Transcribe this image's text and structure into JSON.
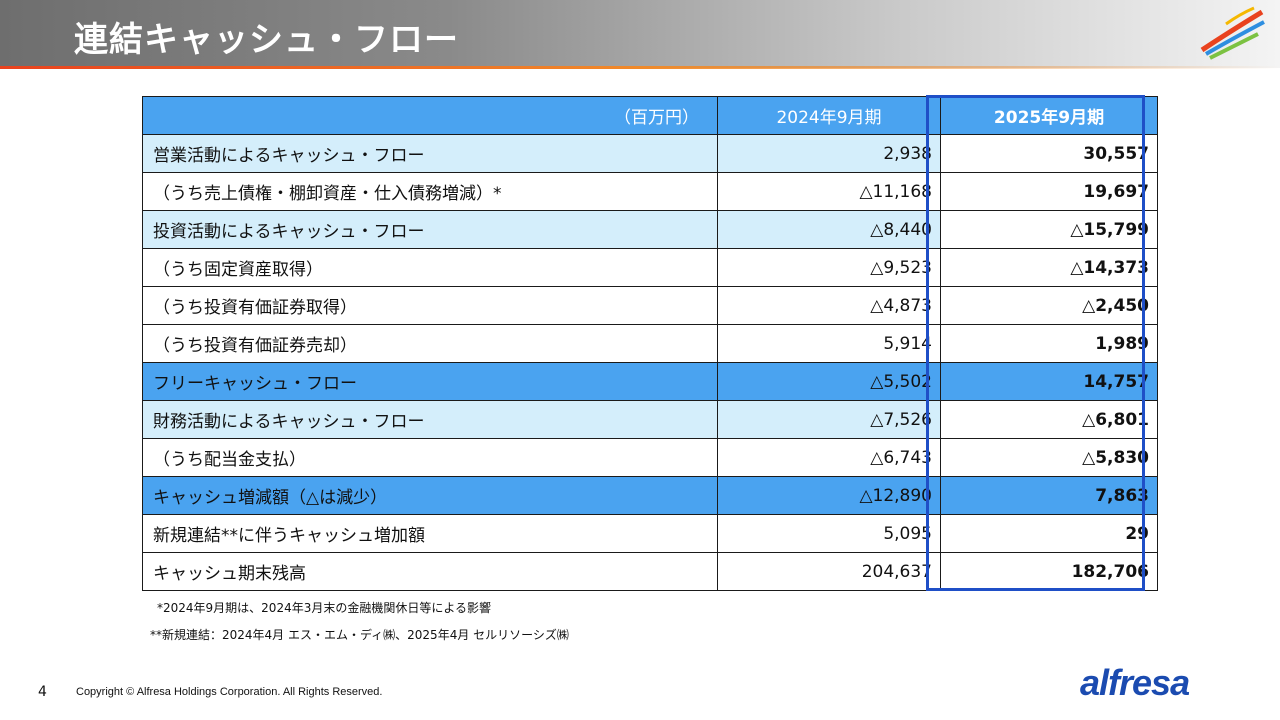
{
  "header": {
    "title": "連結キャッシュ・フロー",
    "logo_icon": "alfresa-swirl-icon"
  },
  "table": {
    "unit": "（百万円）",
    "col1": "2024年9月期",
    "col2": "2025年9月期",
    "rows": [
      {
        "label": "営業活動によるキャッシュ・フロー",
        "v1": "2,938",
        "v2": "30,557",
        "style": "light"
      },
      {
        "label": "（うち売上債権・棚卸資産・仕入債務増減）*",
        "v1": "△11,168",
        "v2": "19,697",
        "style": "white"
      },
      {
        "label": "投資活動によるキャッシュ・フロー",
        "v1": "△8,440",
        "v2": "△15,799",
        "style": "light"
      },
      {
        "label": "（うち固定資産取得）",
        "v1": "△9,523",
        "v2": "△14,373",
        "style": "white"
      },
      {
        "label": "（うち投資有価証券取得）",
        "v1": "△4,873",
        "v2": "△2,450",
        "style": "white"
      },
      {
        "label": "（うち投資有価証券売却）",
        "v1": "5,914",
        "v2": "1,989",
        "style": "white"
      },
      {
        "label": "フリーキャッシュ・フロー",
        "v1": "△5,502",
        "v2": "14,757",
        "style": "blue"
      },
      {
        "label": "財務活動によるキャッシュ・フロー",
        "v1": "△7,526",
        "v2": "△6,801",
        "style": "light"
      },
      {
        "label": "（うち配当金支払）",
        "v1": "△6,743",
        "v2": "△5,830",
        "style": "white"
      },
      {
        "label": "キャッシュ増減額（△は減少）",
        "v1": "△12,890",
        "v2": "7,863",
        "style": "blue"
      },
      {
        "label": "新規連結**に伴うキャッシュ増加額",
        "v1": "5,095",
        "v2": "29",
        "style": "white"
      },
      {
        "label": "キャッシュ期末残高",
        "v1": "204,637",
        "v2": "182,706",
        "style": "white"
      }
    ]
  },
  "notes": {
    "note1": "*2024年9月期は、2024年3月末の金融機関休日等による影響",
    "note2": "**新規連結：2024年4月 エス・エム・ディ㈱、2025年4月 セルリソーシズ㈱"
  },
  "footer": {
    "page": "4",
    "copyright": "Copyright © Alfresa Holdings Corporation. All Rights Reserved.",
    "brand": "alfresa"
  },
  "colors": {
    "header_blue": "#4aa3f0",
    "light_blue": "#d4eefb",
    "highlight_border": "#1f4fc7",
    "brand_blue": "#1b4bb0"
  }
}
